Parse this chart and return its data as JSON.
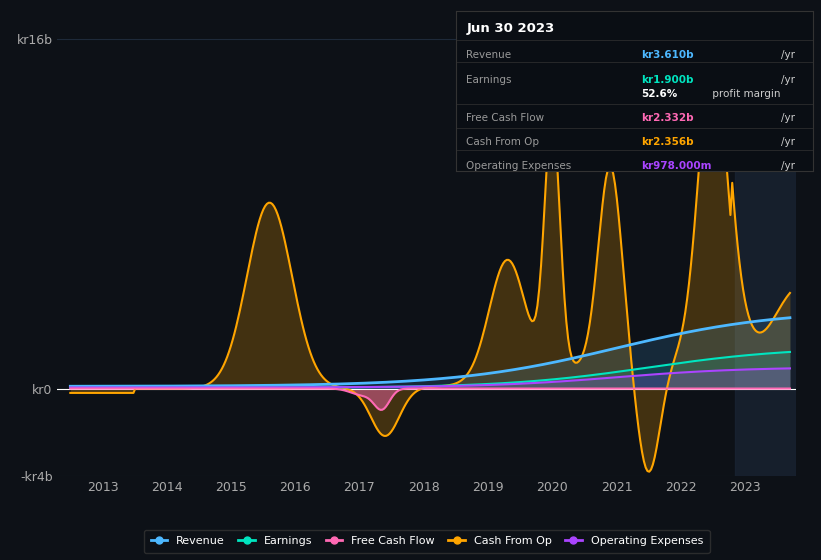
{
  "background_color": "#0d1117",
  "plot_bg_color": "#0d1117",
  "grid_color": "#1e2a3a",
  "title_box": {
    "date": "Jun 30 2023",
    "rows": [
      {
        "label": "Revenue",
        "value": "kr3.610b",
        "unit": "/yr",
        "color": "#4db8ff"
      },
      {
        "label": "Earnings",
        "value": "kr1.900b",
        "unit": "/yr",
        "color": "#00e5c0"
      },
      {
        "label": "",
        "value": "52.6%",
        "unit": " profit margin",
        "color": "#ffffff"
      },
      {
        "label": "Free Cash Flow",
        "value": "kr2.332b",
        "unit": "/yr",
        "color": "#ff69b4"
      },
      {
        "label": "Cash From Op",
        "value": "kr2.356b",
        "unit": "/yr",
        "color": "#ffa500"
      },
      {
        "label": "Operating Expenses",
        "value": "kr978.000m",
        "unit": "/yr",
        "color": "#aa44ff"
      }
    ]
  },
  "ylim": [
    -4000000000.0,
    17000000000.0
  ],
  "ytick_labels": [
    "-kr4b",
    "kr0",
    "kr16b"
  ],
  "legend": [
    {
      "label": "Revenue",
      "color": "#4db8ff"
    },
    {
      "label": "Earnings",
      "color": "#00e5c0"
    },
    {
      "label": "Free Cash Flow",
      "color": "#ff69b4"
    },
    {
      "label": "Cash From Op",
      "color": "#ffa500"
    },
    {
      "label": "Operating Expenses",
      "color": "#aa44ff"
    }
  ],
  "xlim": [
    2012.3,
    2023.8
  ],
  "xticks": [
    2013,
    2014,
    2015,
    2016,
    2017,
    2018,
    2019,
    2020,
    2021,
    2022,
    2023
  ],
  "xtick_labels": [
    "2013",
    "2014",
    "2015",
    "2016",
    "2017",
    "2018",
    "2019",
    "2020",
    "2021",
    "2022",
    "2023"
  ]
}
